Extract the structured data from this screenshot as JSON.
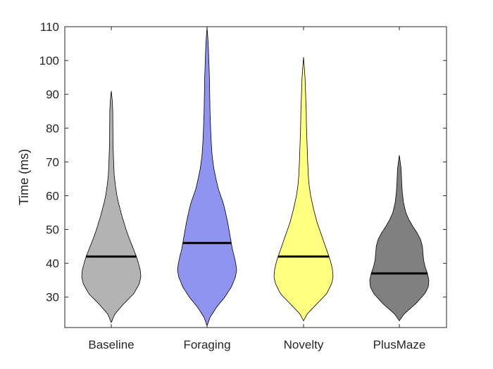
{
  "chart_data": {
    "type": "violin",
    "title": "",
    "xlabel": "",
    "ylabel": "Time (ms)",
    "ylim": [
      21,
      110
    ],
    "yticks": [
      30,
      40,
      50,
      60,
      70,
      80,
      90,
      100,
      110
    ],
    "grid": false,
    "categories": [
      "Baseline",
      "Foraging",
      "Novelty",
      "PlusMaze"
    ],
    "series": [
      {
        "category": "Baseline",
        "color": "#b3b3b3",
        "median": 42,
        "min": 22.5,
        "max": 91,
        "profile": [
          [
            22.5,
            0
          ],
          [
            25,
            0.12
          ],
          [
            28,
            0.42
          ],
          [
            31,
            0.76
          ],
          [
            34,
            0.95
          ],
          [
            36,
            1.0
          ],
          [
            38,
            0.98
          ],
          [
            40,
            0.92
          ],
          [
            42,
            0.85
          ],
          [
            44,
            0.76
          ],
          [
            46,
            0.67
          ],
          [
            48,
            0.58
          ],
          [
            50,
            0.5
          ],
          [
            52,
            0.43
          ],
          [
            54,
            0.36
          ],
          [
            56,
            0.3
          ],
          [
            58,
            0.24
          ],
          [
            60,
            0.19
          ],
          [
            63,
            0.14
          ],
          [
            66,
            0.1
          ],
          [
            70,
            0.08
          ],
          [
            75,
            0.06
          ],
          [
            80,
            0.055
          ],
          [
            85,
            0.05
          ],
          [
            88,
            0.035
          ],
          [
            91,
            0
          ]
        ]
      },
      {
        "category": "Foraging",
        "color": "#8f94f0",
        "median": 46,
        "min": 21.5,
        "max": 110,
        "profile": [
          [
            21.5,
            0
          ],
          [
            24,
            0.1
          ],
          [
            27,
            0.32
          ],
          [
            30,
            0.6
          ],
          [
            33,
            0.82
          ],
          [
            36,
            0.96
          ],
          [
            38,
            1.0
          ],
          [
            40,
            0.97
          ],
          [
            42,
            0.92
          ],
          [
            44,
            0.86
          ],
          [
            46,
            0.82
          ],
          [
            48,
            0.78
          ],
          [
            50,
            0.74
          ],
          [
            52,
            0.7
          ],
          [
            54,
            0.65
          ],
          [
            56,
            0.6
          ],
          [
            58,
            0.54
          ],
          [
            60,
            0.46
          ],
          [
            62,
            0.38
          ],
          [
            65,
            0.3
          ],
          [
            68,
            0.23
          ],
          [
            72,
            0.17
          ],
          [
            76,
            0.14
          ],
          [
            80,
            0.12
          ],
          [
            85,
            0.1
          ],
          [
            90,
            0.09
          ],
          [
            95,
            0.08
          ],
          [
            100,
            0.06
          ],
          [
            105,
            0.04
          ],
          [
            110,
            0
          ]
        ]
      },
      {
        "category": "Novelty",
        "color": "#ffff80",
        "median": 42,
        "min": 23,
        "max": 101,
        "profile": [
          [
            23,
            0
          ],
          [
            25,
            0.12
          ],
          [
            28,
            0.45
          ],
          [
            31,
            0.78
          ],
          [
            34,
            0.95
          ],
          [
            36,
            1.0
          ],
          [
            38,
            0.98
          ],
          [
            40,
            0.93
          ],
          [
            42,
            0.86
          ],
          [
            44,
            0.78
          ],
          [
            46,
            0.7
          ],
          [
            48,
            0.62
          ],
          [
            50,
            0.54
          ],
          [
            52,
            0.46
          ],
          [
            54,
            0.4
          ],
          [
            56,
            0.34
          ],
          [
            58,
            0.29
          ],
          [
            60,
            0.24
          ],
          [
            63,
            0.19
          ],
          [
            66,
            0.16
          ],
          [
            70,
            0.14
          ],
          [
            75,
            0.12
          ],
          [
            80,
            0.1
          ],
          [
            85,
            0.09
          ],
          [
            90,
            0.07
          ],
          [
            95,
            0.05
          ],
          [
            101,
            0
          ]
        ]
      },
      {
        "category": "PlusMaze",
        "color": "#808080",
        "median": 37,
        "min": 23,
        "max": 72,
        "profile": [
          [
            23,
            0
          ],
          [
            25,
            0.16
          ],
          [
            28,
            0.55
          ],
          [
            31,
            0.86
          ],
          [
            33,
            0.98
          ],
          [
            35,
            1.0
          ],
          [
            37,
            0.95
          ],
          [
            39,
            0.87
          ],
          [
            41,
            0.82
          ],
          [
            43,
            0.8
          ],
          [
            45,
            0.78
          ],
          [
            47,
            0.72
          ],
          [
            49,
            0.6
          ],
          [
            51,
            0.45
          ],
          [
            53,
            0.32
          ],
          [
            55,
            0.22
          ],
          [
            58,
            0.14
          ],
          [
            61,
            0.1
          ],
          [
            64,
            0.08
          ],
          [
            68,
            0.06
          ],
          [
            72,
            0
          ]
        ]
      }
    ]
  }
}
